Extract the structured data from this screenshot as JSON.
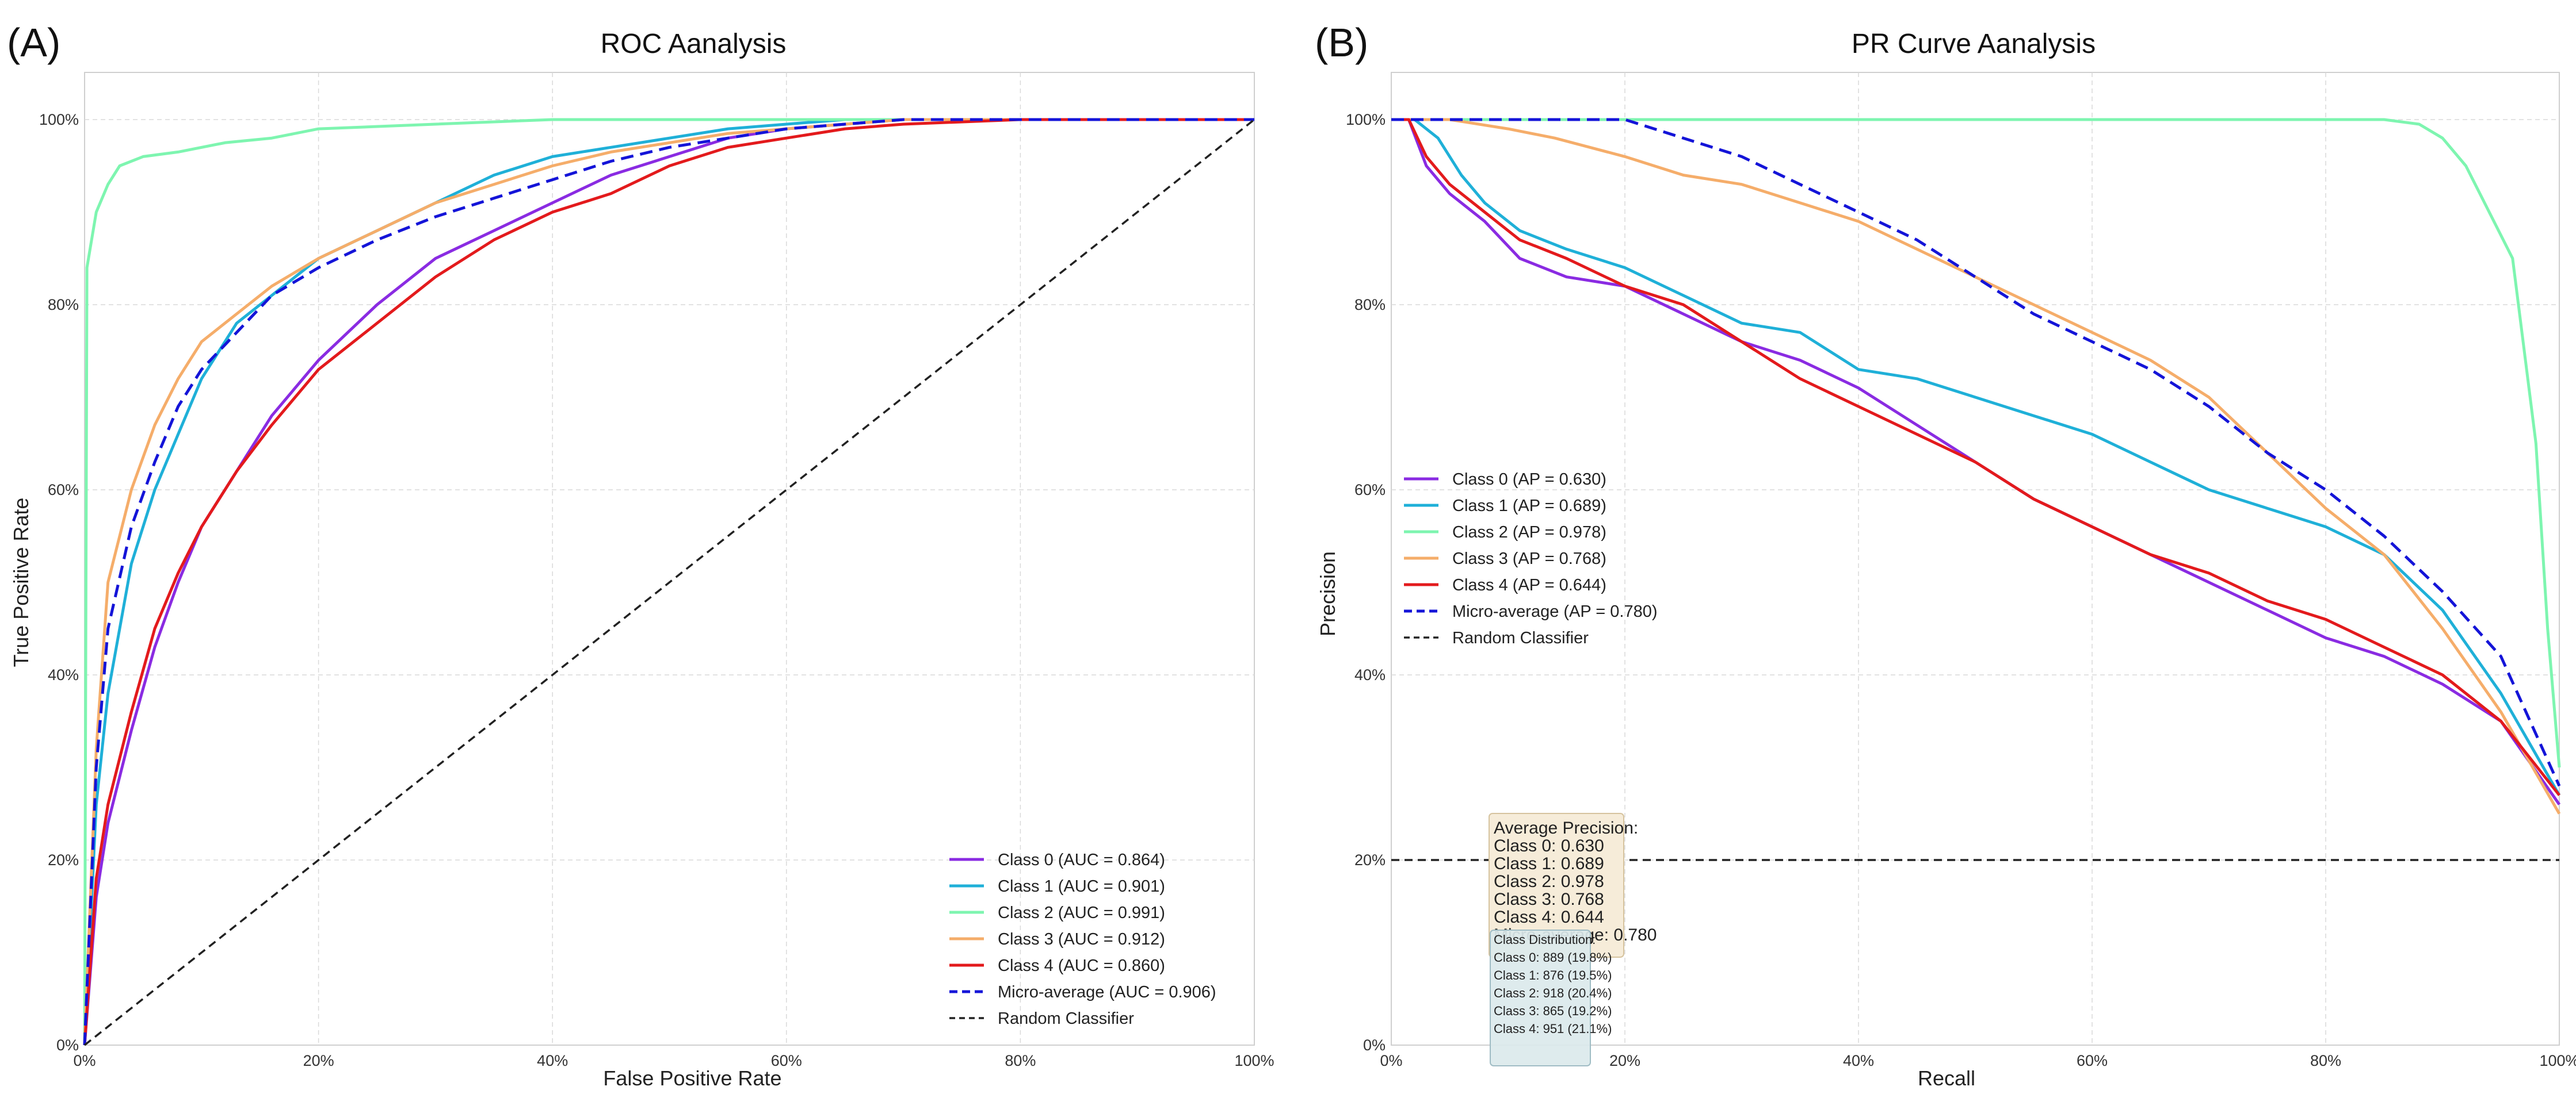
{
  "panels": [
    {
      "letter": "(A)",
      "title": "ROC Aanalysis",
      "xlabel": "False Positive Rate",
      "ylabel": "True Positive Rate"
    },
    {
      "letter": "(B)",
      "title": "PR Curve Aanalysis",
      "xlabel": "Recall",
      "ylabel": "Precision"
    }
  ],
  "ticks": [
    "0%",
    "20%",
    "40%",
    "60%",
    "80%",
    "100%"
  ],
  "colors": {
    "class0": "#8a2be2",
    "class1": "#1fb0d8",
    "class2": "#7ef5b0",
    "class3": "#f5ad6a",
    "class4": "#e31a1c",
    "micro": "#1414d8",
    "random": "#222222"
  },
  "chart_data": [
    {
      "type": "line",
      "title": "ROC Aanalysis",
      "xlabel": "False Positive Rate",
      "ylabel": "True Positive Rate",
      "xlim": [
        0,
        1
      ],
      "ylim": [
        0,
        1
      ],
      "grid": true,
      "legend_position": "bottom-right",
      "series": [
        {
          "name": "Class 0 (AUC = 0.864)",
          "color_key": "class0",
          "style": "solid",
          "x": [
            0,
            0.01,
            0.02,
            0.04,
            0.06,
            0.08,
            0.1,
            0.13,
            0.16,
            0.2,
            0.25,
            0.3,
            0.35,
            0.4,
            0.45,
            0.5,
            0.55,
            0.6,
            0.65,
            0.7,
            0.8,
            0.9,
            1.0
          ],
          "y": [
            0,
            0.16,
            0.24,
            0.34,
            0.43,
            0.5,
            0.56,
            0.62,
            0.68,
            0.74,
            0.8,
            0.85,
            0.88,
            0.91,
            0.94,
            0.96,
            0.98,
            0.99,
            0.995,
            1.0,
            1.0,
            1.0,
            1.0
          ]
        },
        {
          "name": "Class 1 (AUC = 0.901)",
          "color_key": "class1",
          "style": "solid",
          "x": [
            0,
            0.01,
            0.02,
            0.04,
            0.06,
            0.08,
            0.1,
            0.13,
            0.16,
            0.2,
            0.25,
            0.3,
            0.35,
            0.4,
            0.45,
            0.5,
            0.55,
            0.6,
            0.65,
            0.7,
            0.8,
            0.9,
            1.0
          ],
          "y": [
            0,
            0.26,
            0.38,
            0.52,
            0.6,
            0.66,
            0.72,
            0.78,
            0.81,
            0.85,
            0.88,
            0.91,
            0.94,
            0.96,
            0.97,
            0.98,
            0.99,
            0.995,
            1.0,
            1.0,
            1.0,
            1.0,
            1.0
          ]
        },
        {
          "name": "Class 2 (AUC = 0.991)",
          "color_key": "class2",
          "style": "solid",
          "x": [
            0,
            0.002,
            0.01,
            0.02,
            0.03,
            0.05,
            0.08,
            0.12,
            0.16,
            0.2,
            0.3,
            0.4,
            0.5,
            0.6,
            0.7,
            0.8,
            1.0
          ],
          "y": [
            0,
            0.84,
            0.9,
            0.93,
            0.95,
            0.96,
            0.965,
            0.975,
            0.98,
            0.99,
            0.995,
            1.0,
            1.0,
            1.0,
            1.0,
            1.0,
            1.0
          ]
        },
        {
          "name": "Class 3 (AUC = 0.912)",
          "color_key": "class3",
          "style": "solid",
          "x": [
            0,
            0.01,
            0.02,
            0.04,
            0.06,
            0.08,
            0.1,
            0.13,
            0.16,
            0.2,
            0.25,
            0.3,
            0.35,
            0.4,
            0.45,
            0.5,
            0.55,
            0.6,
            0.65,
            0.7,
            0.8,
            0.9,
            1.0
          ],
          "y": [
            0,
            0.32,
            0.5,
            0.6,
            0.67,
            0.72,
            0.76,
            0.79,
            0.82,
            0.85,
            0.88,
            0.91,
            0.93,
            0.95,
            0.965,
            0.975,
            0.985,
            0.99,
            0.995,
            1.0,
            1.0,
            1.0,
            1.0
          ]
        },
        {
          "name": "Class 4 (AUC = 0.860)",
          "color_key": "class4",
          "style": "solid",
          "x": [
            0,
            0.01,
            0.02,
            0.04,
            0.06,
            0.08,
            0.1,
            0.13,
            0.16,
            0.2,
            0.25,
            0.3,
            0.35,
            0.4,
            0.45,
            0.5,
            0.55,
            0.6,
            0.65,
            0.7,
            0.8,
            0.9,
            1.0
          ],
          "y": [
            0,
            0.18,
            0.26,
            0.36,
            0.45,
            0.51,
            0.56,
            0.62,
            0.67,
            0.73,
            0.78,
            0.83,
            0.87,
            0.9,
            0.92,
            0.95,
            0.97,
            0.98,
            0.99,
            0.995,
            1.0,
            1.0,
            1.0
          ]
        },
        {
          "name": "Micro-average (AUC = 0.906)",
          "color_key": "micro",
          "style": "dashed",
          "x": [
            0,
            0.01,
            0.02,
            0.04,
            0.06,
            0.08,
            0.1,
            0.13,
            0.16,
            0.2,
            0.25,
            0.3,
            0.35,
            0.4,
            0.45,
            0.5,
            0.55,
            0.6,
            0.65,
            0.7,
            0.8,
            0.9,
            1.0
          ],
          "y": [
            0,
            0.3,
            0.45,
            0.56,
            0.63,
            0.69,
            0.73,
            0.77,
            0.81,
            0.84,
            0.87,
            0.895,
            0.915,
            0.935,
            0.955,
            0.97,
            0.98,
            0.99,
            0.995,
            1.0,
            1.0,
            1.0,
            1.0
          ]
        },
        {
          "name": "Random Classifier",
          "color_key": "random",
          "style": "dashed",
          "x": [
            0,
            1
          ],
          "y": [
            0,
            1
          ]
        }
      ]
    },
    {
      "type": "line",
      "title": "PR Curve Aanalysis",
      "xlabel": "Recall",
      "ylabel": "Precision",
      "xlim": [
        0,
        1
      ],
      "ylim": [
        0,
        1
      ],
      "grid": true,
      "legend_position": "center-left",
      "series": [
        {
          "name": "Class 0 (AP = 0.630)",
          "color_key": "class0",
          "style": "solid",
          "x": [
            0,
            0.015,
            0.03,
            0.05,
            0.08,
            0.11,
            0.15,
            0.2,
            0.25,
            0.3,
            0.35,
            0.4,
            0.45,
            0.5,
            0.55,
            0.6,
            0.65,
            0.7,
            0.75,
            0.8,
            0.85,
            0.9,
            0.95,
            1.0
          ],
          "y": [
            1.0,
            1.0,
            0.95,
            0.92,
            0.89,
            0.85,
            0.83,
            0.82,
            0.79,
            0.76,
            0.74,
            0.71,
            0.67,
            0.63,
            0.59,
            0.56,
            0.53,
            0.5,
            0.47,
            0.44,
            0.42,
            0.39,
            0.35,
            0.26
          ]
        },
        {
          "name": "Class 1 (AP = 0.689)",
          "color_key": "class1",
          "style": "solid",
          "x": [
            0,
            0.02,
            0.04,
            0.06,
            0.08,
            0.11,
            0.15,
            0.2,
            0.25,
            0.3,
            0.35,
            0.4,
            0.45,
            0.5,
            0.55,
            0.6,
            0.65,
            0.7,
            0.75,
            0.8,
            0.85,
            0.9,
            0.95,
            1.0
          ],
          "y": [
            1.0,
            1.0,
            0.98,
            0.94,
            0.91,
            0.88,
            0.86,
            0.84,
            0.81,
            0.78,
            0.77,
            0.73,
            0.72,
            0.7,
            0.68,
            0.66,
            0.63,
            0.6,
            0.58,
            0.56,
            0.53,
            0.47,
            0.38,
            0.27
          ]
        },
        {
          "name": "Class 2 (AP = 0.978)",
          "color_key": "class2",
          "style": "solid",
          "x": [
            0,
            0.1,
            0.2,
            0.3,
            0.4,
            0.5,
            0.6,
            0.7,
            0.8,
            0.85,
            0.88,
            0.9,
            0.92,
            0.94,
            0.96,
            0.98,
            0.99,
            1.0
          ],
          "y": [
            1.0,
            1.0,
            1.0,
            1.0,
            1.0,
            1.0,
            1.0,
            1.0,
            1.0,
            1.0,
            0.995,
            0.98,
            0.95,
            0.9,
            0.85,
            0.65,
            0.45,
            0.3
          ]
        },
        {
          "name": "Class 3 (AP = 0.768)",
          "color_key": "class3",
          "style": "solid",
          "x": [
            0,
            0.05,
            0.1,
            0.14,
            0.2,
            0.25,
            0.3,
            0.35,
            0.4,
            0.45,
            0.5,
            0.55,
            0.6,
            0.65,
            0.7,
            0.75,
            0.8,
            0.85,
            0.9,
            0.95,
            1.0
          ],
          "y": [
            1.0,
            1.0,
            0.99,
            0.98,
            0.96,
            0.94,
            0.93,
            0.91,
            0.89,
            0.86,
            0.83,
            0.8,
            0.77,
            0.74,
            0.7,
            0.64,
            0.58,
            0.53,
            0.45,
            0.36,
            0.25
          ]
        },
        {
          "name": "Class 4 (AP = 0.644)",
          "color_key": "class4",
          "style": "solid",
          "x": [
            0,
            0.015,
            0.03,
            0.05,
            0.08,
            0.11,
            0.15,
            0.2,
            0.25,
            0.3,
            0.35,
            0.4,
            0.45,
            0.5,
            0.55,
            0.6,
            0.65,
            0.7,
            0.75,
            0.8,
            0.85,
            0.9,
            0.95,
            1.0
          ],
          "y": [
            1.0,
            1.0,
            0.96,
            0.93,
            0.9,
            0.87,
            0.85,
            0.82,
            0.8,
            0.76,
            0.72,
            0.69,
            0.66,
            0.63,
            0.59,
            0.56,
            0.53,
            0.51,
            0.48,
            0.46,
            0.43,
            0.4,
            0.35,
            0.27
          ]
        },
        {
          "name": "Micro-average (AP = 0.780)",
          "color_key": "micro",
          "style": "dashed",
          "x": [
            0,
            0.1,
            0.2,
            0.25,
            0.3,
            0.35,
            0.4,
            0.45,
            0.5,
            0.55,
            0.6,
            0.65,
            0.7,
            0.75,
            0.8,
            0.85,
            0.9,
            0.95,
            1.0
          ],
          "y": [
            1.0,
            1.0,
            1.0,
            0.98,
            0.96,
            0.93,
            0.9,
            0.87,
            0.83,
            0.79,
            0.76,
            0.73,
            0.69,
            0.64,
            0.6,
            0.55,
            0.49,
            0.42,
            0.28
          ]
        },
        {
          "name": "Random Classifier",
          "color_key": "random",
          "style": "dashed",
          "x": [
            0,
            1
          ],
          "y": [
            0.2,
            0.2
          ]
        }
      ],
      "annotations": {
        "ap_box": {
          "title": "Average Precision:",
          "lines": [
            "Class 0: 0.630",
            "Class 1: 0.689",
            "Class 2: 0.978",
            "Class 3: 0.768",
            "Class 4: 0.644",
            "Micro-average: 0.780"
          ]
        },
        "dist_box": {
          "title": "Class Distribution:",
          "lines": [
            "Class 0: 889 (19.8%)",
            "Class 1: 876 (19.5%)",
            "Class 2: 918 (20.4%)",
            "Class 3: 865 (19.2%)",
            "Class 4: 951 (21.1%)"
          ]
        }
      }
    }
  ]
}
